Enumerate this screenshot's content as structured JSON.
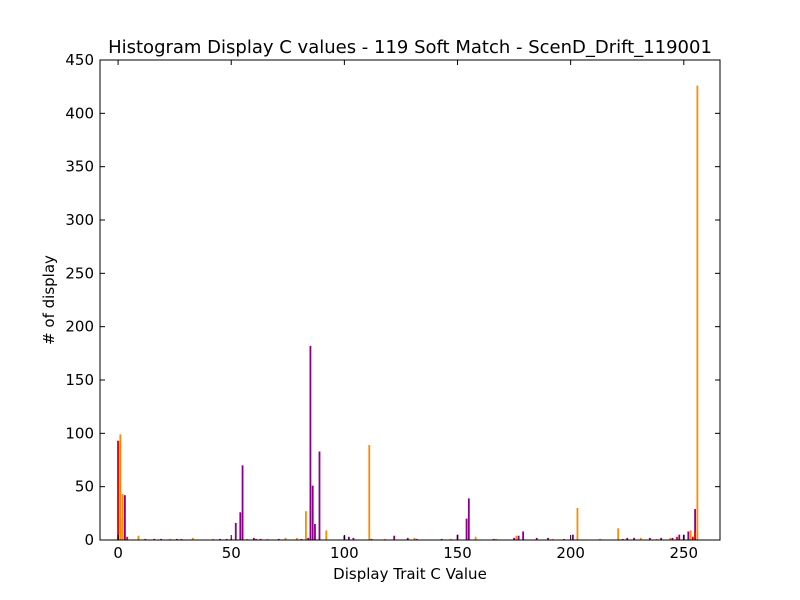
{
  "chart_data": {
    "type": "bar",
    "title": "Histogram Display C values - 119 Soft Match - ScenD_Drift_119001",
    "xlabel": "Display Trait C Value",
    "ylabel": "# of display",
    "xlim": [
      -8,
      266
    ],
    "ylim": [
      0,
      450
    ],
    "xticks": [
      0,
      50,
      100,
      150,
      200,
      250
    ],
    "yticks": [
      0,
      50,
      100,
      150,
      200,
      250,
      300,
      350,
      400,
      450
    ],
    "grid": false,
    "series": [
      {
        "color": "#8b008b",
        "points": [
          [
            0,
            93
          ],
          [
            1,
            20
          ],
          [
            3,
            42
          ],
          [
            16,
            1
          ],
          [
            19,
            1
          ],
          [
            26,
            1
          ],
          [
            45,
            1
          ],
          [
            48,
            1
          ],
          [
            52,
            16
          ],
          [
            54,
            26
          ],
          [
            55,
            70
          ],
          [
            60,
            2
          ],
          [
            63,
            1
          ],
          [
            71,
            1
          ],
          [
            84,
            2
          ],
          [
            85,
            182
          ],
          [
            86,
            51
          ],
          [
            87,
            15
          ],
          [
            89,
            83
          ],
          [
            100,
            4
          ],
          [
            102,
            3
          ],
          [
            104,
            2
          ],
          [
            122,
            4
          ],
          [
            128,
            2
          ],
          [
            143,
            1
          ],
          [
            150,
            5
          ],
          [
            154,
            20
          ],
          [
            155,
            39
          ],
          [
            175,
            2
          ],
          [
            177,
            4
          ],
          [
            179,
            8
          ],
          [
            185,
            2
          ],
          [
            190,
            2
          ],
          [
            201,
            5
          ],
          [
            225,
            2
          ],
          [
            228,
            2
          ],
          [
            235,
            2
          ],
          [
            240,
            2
          ],
          [
            245,
            2
          ],
          [
            248,
            5
          ],
          [
            250,
            5
          ],
          [
            252,
            8
          ],
          [
            255,
            29
          ]
        ]
      },
      {
        "color": "#ff8c00",
        "points": [
          [
            1,
            99
          ],
          [
            2,
            43
          ],
          [
            9,
            4
          ],
          [
            23,
            1
          ],
          [
            33,
            2
          ],
          [
            42,
            1
          ],
          [
            57,
            1
          ],
          [
            66,
            1
          ],
          [
            74,
            2
          ],
          [
            79,
            2
          ],
          [
            83,
            27
          ],
          [
            92,
            9
          ],
          [
            111,
            89
          ],
          [
            118,
            1
          ],
          [
            131,
            2
          ],
          [
            147,
            1
          ],
          [
            158,
            3
          ],
          [
            167,
            1
          ],
          [
            176,
            4
          ],
          [
            192,
            1
          ],
          [
            203,
            30
          ],
          [
            213,
            1
          ],
          [
            221,
            11
          ],
          [
            231,
            2
          ],
          [
            238,
            1
          ],
          [
            244,
            2
          ],
          [
            253,
            9
          ],
          [
            256,
            426
          ]
        ]
      },
      {
        "color": "#ff0000",
        "points": [
          [
            0,
            93
          ],
          [
            4,
            3
          ],
          [
            12,
            1
          ],
          [
            28,
            1
          ],
          [
            50,
            1
          ],
          [
            61,
            1
          ],
          [
            81,
            1
          ],
          [
            112,
            1
          ],
          [
            132,
            1
          ],
          [
            166,
            1
          ],
          [
            197,
            1
          ],
          [
            223,
            1
          ],
          [
            247,
            3
          ],
          [
            254,
            3
          ],
          [
            255,
            8
          ]
        ]
      }
    ]
  }
}
